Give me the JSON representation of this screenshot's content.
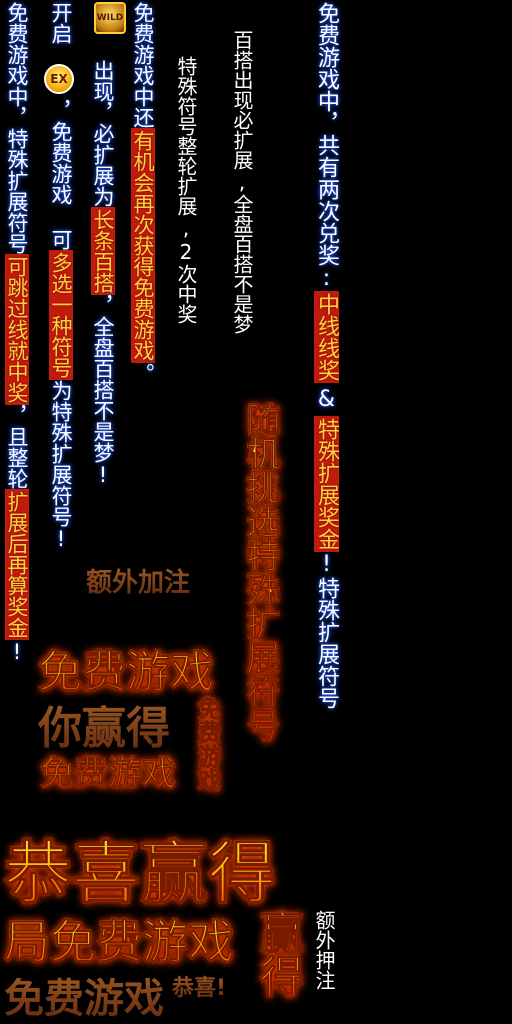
{
  "col_a": "免费游戏中，共有两次兑奖:",
  "col_a_hl1": "中线线奖",
  "col_a_amp": "&",
  "col_a_hl2": "特殊扩展奖金",
  "col_a_tail": "!特殊扩展符号",
  "col_b": "随机挑选特殊扩展符号",
  "col_c": "百搭出现必扩展,全盘百搭不是梦",
  "col_d": "特殊符号整轮扩展,2次中奖",
  "col_e_pre": "免费游戏中还",
  "col_e_hl": "有机会再次获得免费游戏",
  "col_e_post": "。",
  "col_f_pre": "出现，必扩展为",
  "col_f_hl": "长条百搭",
  "col_f_post": "，全盘百搭不是梦!",
  "col_g_pre": "开启",
  "col_g_mid": "，免费游戏 可",
  "col_g_hl": "多选一种符号",
  "col_g_post": "为特殊扩展符号!",
  "col_h_pre": "免费游戏中，特殊扩展符号",
  "col_h_hl": "可跳过线就中奖",
  "col_h_mid": "，且整轮",
  "col_h_hl2": "扩展后再算奖金",
  "col_h_post": "!",
  "icon_wild_label": "WILD",
  "icon_ex_label": "EX",
  "extra_bet": "额外加注",
  "free_game_1": "免费游戏",
  "you_win": "你赢得",
  "free_game_v": "免费游戏",
  "free_game_2": "免费游戏",
  "congrats_win": "恭喜赢得",
  "ju_free_game": "局免费游戏",
  "win_v": "赢得",
  "extra_bet_v": "额外押注",
  "free_game_dim": "免费游戏",
  "congrats_small": "恭喜!"
}
